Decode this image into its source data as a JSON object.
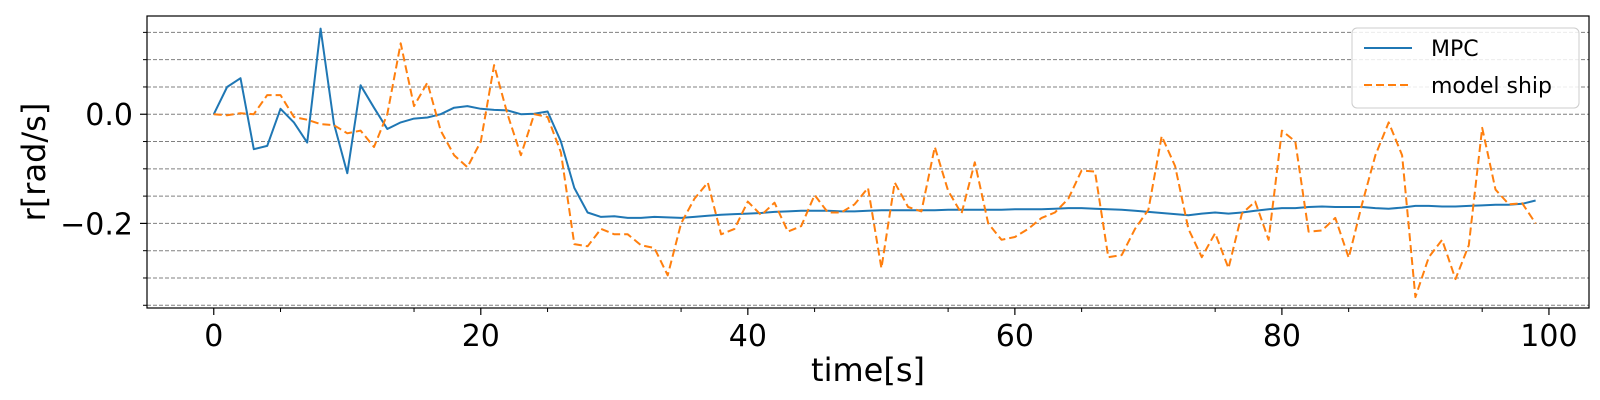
{
  "chart_data": {
    "type": "line",
    "xlabel": "time[s]",
    "ylabel": "r[rad/s]",
    "xlim": [
      -5,
      103
    ],
    "ylim": [
      -0.355,
      0.18
    ],
    "xticks": [
      0,
      20,
      40,
      60,
      80,
      100
    ],
    "xtick_labels": [
      "0",
      "20",
      "40",
      "60",
      "80",
      "100"
    ],
    "yticks": [
      0.0,
      -0.2
    ],
    "ytick_labels": [
      "0.0",
      "−0.2"
    ],
    "grid": "horizontal dashed",
    "grid_y": [
      -0.35,
      -0.3,
      -0.25,
      -0.2,
      -0.15,
      -0.1,
      -0.05,
      0.0,
      0.05,
      0.1,
      0.15
    ],
    "legend_position": "top-right",
    "series": [
      {
        "name": "MPC",
        "color": "#1f77b4",
        "style": "solid",
        "x": [
          0,
          1,
          2,
          3,
          4,
          5,
          6,
          7,
          8,
          9,
          10,
          11,
          12,
          13,
          14,
          15,
          16,
          17,
          18,
          19,
          20,
          21,
          22,
          23,
          24,
          25,
          26,
          27,
          28,
          29,
          30,
          31,
          32,
          33,
          34,
          35,
          36,
          37,
          38,
          39,
          40,
          41,
          42,
          43,
          44,
          45,
          46,
          47,
          48,
          49,
          50,
          51,
          52,
          53,
          54,
          55,
          56,
          57,
          58,
          59,
          60,
          61,
          62,
          63,
          64,
          65,
          66,
          67,
          68,
          69,
          70,
          71,
          72,
          73,
          74,
          75,
          76,
          77,
          78,
          79,
          80,
          81,
          82,
          83,
          84,
          85,
          86,
          87,
          88,
          89,
          90,
          91,
          92,
          93,
          94,
          95,
          96,
          97,
          98,
          99
        ],
        "values": [
          0.0,
          0.05,
          0.066,
          -0.064,
          -0.058,
          0.01,
          -0.015,
          -0.052,
          0.157,
          -0.017,
          -0.108,
          0.053,
          0.012,
          -0.027,
          -0.015,
          -0.008,
          -0.006,
          0.0,
          0.012,
          0.015,
          0.01,
          0.008,
          0.007,
          0.0,
          0.001,
          0.005,
          -0.05,
          -0.135,
          -0.18,
          -0.188,
          -0.187,
          -0.19,
          -0.19,
          -0.188,
          -0.189,
          -0.19,
          -0.188,
          -0.186,
          -0.184,
          -0.183,
          -0.182,
          -0.181,
          -0.179,
          -0.178,
          -0.177,
          -0.177,
          -0.177,
          -0.178,
          -0.178,
          -0.177,
          -0.176,
          -0.176,
          -0.176,
          -0.176,
          -0.176,
          -0.175,
          -0.175,
          -0.175,
          -0.175,
          -0.175,
          -0.174,
          -0.174,
          -0.174,
          -0.173,
          -0.172,
          -0.172,
          -0.173,
          -0.174,
          -0.175,
          -0.177,
          -0.179,
          -0.181,
          -0.183,
          -0.185,
          -0.182,
          -0.18,
          -0.182,
          -0.18,
          -0.177,
          -0.174,
          -0.172,
          -0.172,
          -0.17,
          -0.169,
          -0.17,
          -0.17,
          -0.17,
          -0.172,
          -0.173,
          -0.171,
          -0.168,
          -0.168,
          -0.169,
          -0.169,
          -0.168,
          -0.167,
          -0.166,
          -0.166,
          -0.164,
          -0.158
        ]
      },
      {
        "name": "model ship",
        "color": "#ff7f0e",
        "style": "dashed",
        "x": [
          0,
          1,
          2,
          3,
          4,
          5,
          6,
          7,
          8,
          9,
          10,
          11,
          12,
          13,
          14,
          15,
          16,
          17,
          18,
          19,
          20,
          21,
          22,
          23,
          24,
          25,
          26,
          27,
          28,
          29,
          30,
          31,
          32,
          33,
          34,
          35,
          36,
          37,
          38,
          39,
          40,
          41,
          42,
          43,
          44,
          45,
          46,
          47,
          48,
          49,
          50,
          51,
          52,
          53,
          54,
          55,
          56,
          57,
          58,
          59,
          60,
          61,
          62,
          63,
          64,
          65,
          66,
          67,
          68,
          69,
          70,
          71,
          72,
          73,
          74,
          75,
          76,
          77,
          78,
          79,
          80,
          81,
          82,
          83,
          84,
          85,
          86,
          87,
          88,
          89,
          90,
          91,
          92,
          93,
          94,
          95,
          96,
          97,
          98,
          99
        ],
        "values": [
          0.0,
          -0.002,
          0.002,
          0.0,
          0.035,
          0.035,
          -0.005,
          -0.01,
          -0.018,
          -0.02,
          -0.035,
          -0.03,
          -0.06,
          0.0,
          0.13,
          0.015,
          0.058,
          -0.03,
          -0.075,
          -0.097,
          -0.05,
          0.09,
          0.0,
          -0.075,
          0.0,
          -0.005,
          -0.07,
          -0.238,
          -0.242,
          -0.21,
          -0.22,
          -0.22,
          -0.24,
          -0.245,
          -0.295,
          -0.2,
          -0.155,
          -0.125,
          -0.22,
          -0.21,
          -0.16,
          -0.185,
          -0.162,
          -0.215,
          -0.205,
          -0.148,
          -0.18,
          -0.18,
          -0.165,
          -0.135,
          -0.282,
          -0.125,
          -0.17,
          -0.178,
          -0.06,
          -0.14,
          -0.182,
          -0.088,
          -0.2,
          -0.23,
          -0.225,
          -0.21,
          -0.19,
          -0.18,
          -0.155,
          -0.103,
          -0.105,
          -0.262,
          -0.258,
          -0.21,
          -0.175,
          -0.04,
          -0.095,
          -0.21,
          -0.262,
          -0.218,
          -0.282,
          -0.182,
          -0.16,
          -0.23,
          -0.03,
          -0.05,
          -0.215,
          -0.213,
          -0.19,
          -0.263,
          -0.165,
          -0.075,
          -0.015,
          -0.075,
          -0.335,
          -0.262,
          -0.23,
          -0.302,
          -0.24,
          -0.025,
          -0.138,
          -0.165,
          -0.163,
          -0.2
        ]
      }
    ]
  }
}
